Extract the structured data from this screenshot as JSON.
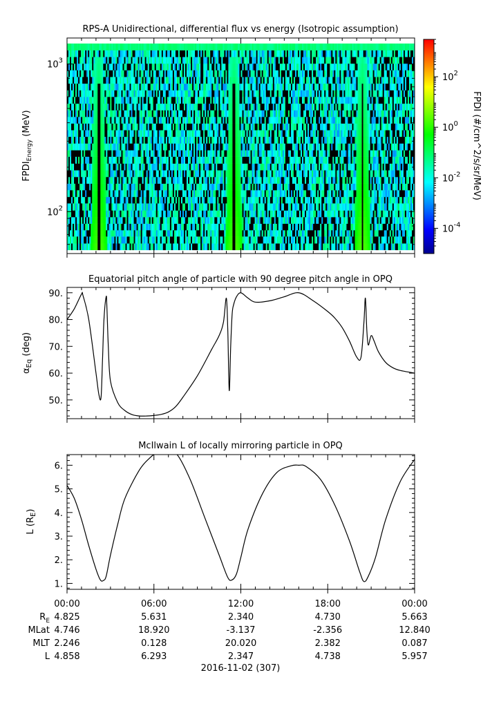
{
  "panels": [
    {
      "title": "RPS-A Unidirectional, differential flux vs energy (Isotropic assumption)",
      "ylabel_main": "FPDI",
      "ylabel_sub": "Energy",
      "ylabel_unit": " (MeV)",
      "colorbar_label": "FPDI (#/cm^2/s/sr/MeV)"
    },
    {
      "title": "Equatorial pitch angle of particle with 90 degree pitch angle in OPQ",
      "ylabel_main": "α",
      "ylabel_sub": "Eq",
      "ylabel_unit": " (deg)"
    },
    {
      "title": "McIlwain L of locally mirroring particle in OPQ",
      "ylabel_main": "L (R",
      "ylabel_sub": "E",
      "ylabel_unit": ")"
    }
  ],
  "ephemeris": {
    "row_labels": [
      {
        "main": "R",
        "sub": "E"
      },
      {
        "main": "MLat",
        "sub": ""
      },
      {
        "main": "MLT",
        "sub": ""
      },
      {
        "main": "L",
        "sub": ""
      }
    ],
    "times": [
      "00:00",
      "06:00",
      "12:00",
      "18:00",
      "00:00"
    ],
    "rows": [
      [
        "4.825",
        "5.631",
        "2.340",
        "4.730",
        "5.663"
      ],
      [
        "4.746",
        "18.920",
        "-3.137",
        "-2.356",
        "12.840"
      ],
      [
        "2.246",
        "0.128",
        "20.020",
        "2.382",
        "0.087"
      ],
      [
        "4.858",
        "6.293",
        "2.347",
        "4.738",
        "5.957"
      ]
    ],
    "date_label": "2016-11-02 (307)"
  },
  "chart_data": [
    {
      "type": "heatmap",
      "title": "RPS-A Unidirectional, differential flux vs energy (Isotropic assumption)",
      "xlabel": "",
      "ylabel": "FPDI Energy (MeV)",
      "x_range_hours": [
        0,
        24
      ],
      "y_scale": "log",
      "ylim": [
        52,
        1500
      ],
      "y_ticks": [
        {
          "value": 100,
          "base": "10",
          "exp": "2"
        },
        {
          "value": 1000,
          "base": "10",
          "exp": "3"
        }
      ],
      "colorbar": {
        "label": "FPDI (#/cm^2/s/sr/MeV)",
        "scale": "log",
        "range": [
          1e-05,
          3000
        ],
        "ticks": [
          {
            "value": 0.0001,
            "base": "10",
            "exp": "-4"
          },
          {
            "value": 0.01,
            "base": "10",
            "exp": "-2"
          },
          {
            "value": 1,
            "base": "10",
            "exp": "0"
          },
          {
            "value": 100,
            "base": "10",
            "exp": "2"
          }
        ],
        "colors": [
          "#00008f",
          "#0000ff",
          "#0080ff",
          "#00ffff",
          "#00ff80",
          "#00ff00",
          "#80ff00",
          "#ffff00",
          "#ff8000",
          "#ff0000"
        ]
      },
      "energy_bin_edges_mev": [
        55,
        61,
        68,
        75,
        83,
        92,
        102,
        114,
        126,
        140,
        155,
        172,
        191,
        212,
        236,
        261,
        290,
        322,
        357,
        396,
        439,
        487,
        540,
        600,
        665,
        738,
        819,
        909,
        1008,
        1118,
        1240,
        1376
      ],
      "flux_peaks": [
        {
          "hour_start": 1.9,
          "hour_end": 2.5,
          "low_energy_mev": 55,
          "high_energy_mev": 1000,
          "peak_flux": 2
        },
        {
          "hour_start": 11.2,
          "hour_end": 11.85,
          "low_energy_mev": 55,
          "high_energy_mev": 1000,
          "peak_flux": 2
        },
        {
          "hour_start": 20.1,
          "hour_end": 20.7,
          "low_energy_mev": 55,
          "high_energy_mev": 1000,
          "peak_flux": 2
        }
      ],
      "background_flux_range": [
        0.001,
        0.1
      ]
    },
    {
      "type": "line",
      "title": "Equatorial pitch angle of particle with 90 degree pitch angle in OPQ",
      "xlabel": "",
      "ylabel": "αEq (deg)",
      "xlim": [
        0,
        24
      ],
      "ylim": [
        43,
        92
      ],
      "y_ticks": [
        50,
        60,
        70,
        80,
        90
      ],
      "y_tick_labels": [
        "50.",
        "60.",
        "70.",
        "80.",
        "90."
      ],
      "series": [
        {
          "x": [
            0,
            0.5,
            1.0,
            1.1,
            1.5,
            2.0,
            2.2,
            2.35,
            2.45,
            2.55,
            2.7,
            2.75,
            2.85,
            3.0,
            3.5,
            4.0,
            4.5,
            5.0,
            5.5,
            6.0,
            6.5,
            7.0,
            7.5,
            8.0,
            9.0,
            10.0,
            10.5,
            10.8,
            11.0,
            11.1,
            11.2,
            11.3,
            11.4,
            11.5,
            11.7,
            12.0,
            12.5,
            13.0,
            14.0,
            15.0,
            16.0,
            17.0,
            18.0,
            18.5,
            19.0,
            19.5,
            20.0,
            20.3,
            20.5,
            20.6,
            20.7,
            20.8,
            21.0,
            21.2,
            21.5,
            22.0,
            22.5,
            23.0,
            24.0
          ],
          "y": [
            80,
            84,
            89.5,
            89,
            80,
            60,
            52,
            51,
            65,
            80,
            88.5,
            85,
            70,
            57,
            49,
            46,
            44.5,
            44,
            44,
            44.2,
            44.6,
            45.5,
            47.5,
            51,
            59,
            69,
            74,
            79,
            88,
            76,
            53.5,
            70,
            82,
            85.5,
            88.5,
            90,
            88,
            86.5,
            87,
            88.5,
            90,
            87,
            83,
            80.5,
            77,
            72,
            66,
            66,
            79,
            88,
            76,
            70.5,
            74,
            72,
            68,
            64,
            62,
            61,
            60
          ]
        }
      ]
    },
    {
      "type": "line",
      "title": "McIlwain L of locally mirroring particle in OPQ",
      "xlabel": "",
      "ylabel": "L (RE)",
      "xlim": [
        0,
        24
      ],
      "ylim": [
        0.75,
        6.45
      ],
      "y_ticks": [
        1,
        2,
        3,
        4,
        5,
        6
      ],
      "y_tick_labels": [
        "1.",
        "2.",
        "3.",
        "4.",
        "5.",
        "6."
      ],
      "series": [
        {
          "x": [
            0,
            0.5,
            1.0,
            1.5,
            2.0,
            2.3,
            2.5,
            2.7,
            3.0,
            3.5,
            4.0,
            5.0,
            5.7,
            6.2,
            7.0,
            7.6,
            8.5,
            9.5,
            10.5,
            11.1,
            11.4,
            11.7,
            12.0,
            12.5,
            13.5,
            14.5,
            15.5,
            16.0,
            16.5,
            17.5,
            18.5,
            19.5,
            20.2,
            20.5,
            20.8,
            21.3,
            22.0,
            23.0,
            24.0
          ],
          "y": [
            5.15,
            4.6,
            3.7,
            2.6,
            1.6,
            1.15,
            1.12,
            1.3,
            2.2,
            3.5,
            4.6,
            5.8,
            6.3,
            6.5,
            6.5,
            6.45,
            5.4,
            3.8,
            2.2,
            1.25,
            1.15,
            1.4,
            2.1,
            3.3,
            4.8,
            5.7,
            5.98,
            6.0,
            5.95,
            5.4,
            4.3,
            2.8,
            1.5,
            1.08,
            1.3,
            2.1,
            3.7,
            5.3,
            6.25
          ]
        }
      ]
    }
  ]
}
